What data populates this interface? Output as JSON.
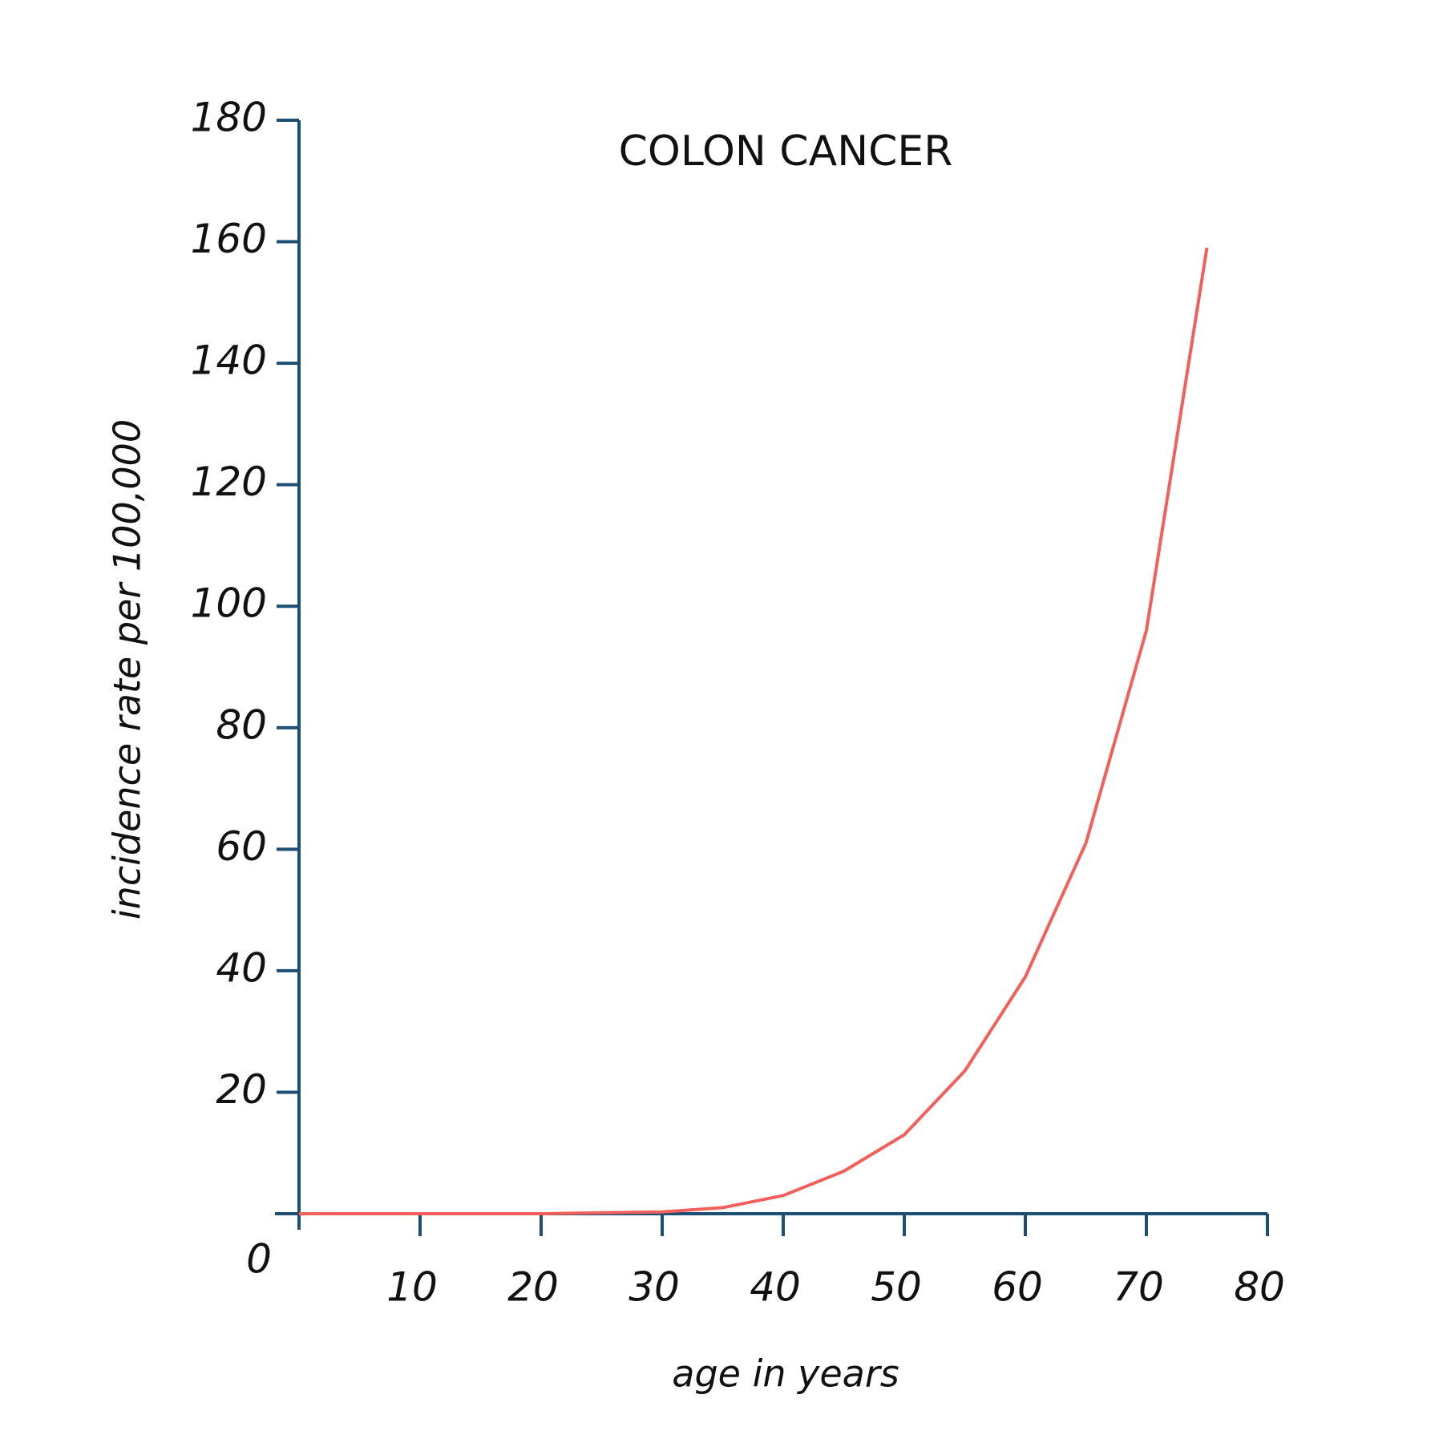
{
  "chart_data": {
    "type": "line",
    "title": "COLON CANCER",
    "x_label": "age in years",
    "y_label": "incidence rate per 100,000",
    "x": [
      0,
      10,
      20,
      30,
      35,
      40,
      45,
      50,
      55,
      60,
      65,
      70,
      75
    ],
    "values": [
      0,
      0,
      0,
      0.3,
      1,
      3,
      7,
      13,
      23.5,
      39,
      61,
      96,
      159
    ],
    "color": "#f2605b",
    "xlim": [
      0,
      80
    ],
    "xticks": [
      10,
      20,
      30,
      40,
      50,
      60,
      70,
      80
    ],
    "ylim": [
      0,
      180
    ],
    "yticks": [
      0,
      20,
      40,
      60,
      80,
      100,
      120,
      140,
      160,
      180
    ],
    "grid": false
  }
}
